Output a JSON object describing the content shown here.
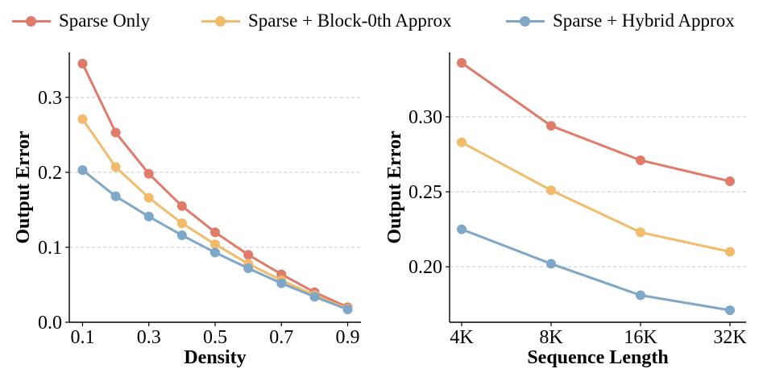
{
  "legend": [
    {
      "label": "Sparse Only",
      "color": "#e07b6a"
    },
    {
      "label": "Sparse + Block-0th Approx",
      "color": "#f2bb6b"
    },
    {
      "label": "Sparse + Hybrid Approx",
      "color": "#7fa7c8"
    }
  ],
  "chart_data": [
    {
      "type": "line",
      "xlabel": "Density",
      "ylabel": "Output Error",
      "x": [
        0.1,
        0.2,
        0.3,
        0.4,
        0.5,
        0.6,
        0.7,
        0.8,
        0.9
      ],
      "xticks": [
        "0.1",
        "0.3",
        "0.5",
        "0.7",
        "0.9"
      ],
      "yticks": [
        "0.0",
        "0.1",
        "0.2",
        "0.3"
      ],
      "xlim": [
        0.06,
        0.94
      ],
      "ylim": [
        0.0,
        0.36
      ],
      "grid": "horizontal dashed",
      "series": [
        {
          "name": "Sparse Only",
          "color": "#e07b6a",
          "values": [
            0.345,
            0.253,
            0.198,
            0.155,
            0.12,
            0.09,
            0.064,
            0.04,
            0.02
          ]
        },
        {
          "name": "Sparse + Block-0th Approx",
          "color": "#f2bb6b",
          "values": [
            0.271,
            0.207,
            0.166,
            0.132,
            0.104,
            0.078,
            0.056,
            0.036,
            0.018
          ]
        },
        {
          "name": "Sparse + Hybrid Approx",
          "color": "#7fa7c8",
          "values": [
            0.203,
            0.168,
            0.141,
            0.116,
            0.093,
            0.072,
            0.052,
            0.034,
            0.017
          ]
        }
      ]
    },
    {
      "type": "line",
      "xlabel": "Sequence Length",
      "ylabel": "Output Error",
      "categories": [
        "4K",
        "8K",
        "16K",
        "32K"
      ],
      "yticks": [
        "0.20",
        "0.25",
        "0.30"
      ],
      "ylim": [
        0.163,
        0.343
      ],
      "grid": "horizontal dashed",
      "series": [
        {
          "name": "Sparse Only",
          "color": "#e07b6a",
          "values": [
            0.336,
            0.294,
            0.271,
            0.257
          ]
        },
        {
          "name": "Sparse + Block-0th Approx",
          "color": "#f2bb6b",
          "values": [
            0.283,
            0.251,
            0.223,
            0.21
          ]
        },
        {
          "name": "Sparse + Hybrid Approx",
          "color": "#7fa7c8",
          "values": [
            0.225,
            0.202,
            0.181,
            0.171
          ]
        }
      ]
    }
  ]
}
